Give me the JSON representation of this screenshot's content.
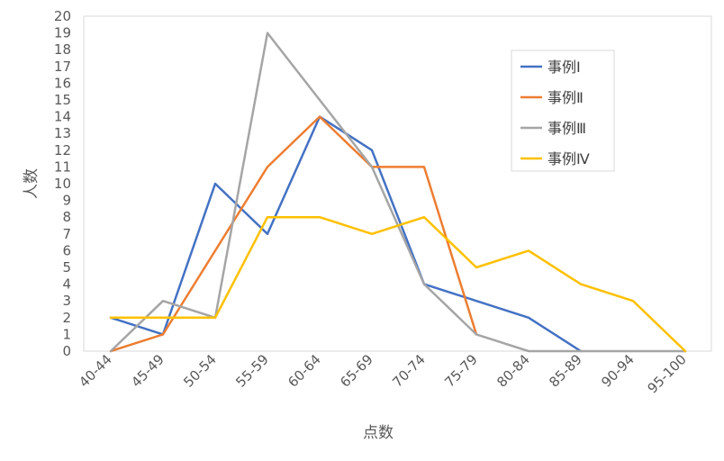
{
  "chart_data": {
    "type": "line",
    "title": "",
    "xlabel": "点数",
    "ylabel": "人数",
    "ylim": [
      0,
      20
    ],
    "yticks": [
      0,
      1,
      2,
      3,
      4,
      5,
      6,
      7,
      8,
      9,
      10,
      11,
      12,
      13,
      14,
      15,
      16,
      17,
      18,
      19,
      20
    ],
    "grid": false,
    "legend_position": "top-right",
    "categories": [
      "40-44",
      "45-49",
      "50-54",
      "55-59",
      "60-64",
      "65-69",
      "70-74",
      "75-79",
      "80-84",
      "85-89",
      "90-94",
      "95-100"
    ],
    "series": [
      {
        "name": "事例Ⅰ",
        "color": "#4472C4",
        "values": [
          2,
          1,
          10,
          7,
          14,
          12,
          4,
          3,
          2,
          0,
          null,
          null
        ]
      },
      {
        "name": "事例Ⅱ",
        "color": "#ED7D31",
        "values": [
          0,
          1,
          6,
          11,
          14,
          11,
          11,
          1,
          null,
          null,
          null,
          null
        ]
      },
      {
        "name": "事例Ⅲ",
        "color": "#A5A5A5",
        "values": [
          0,
          3,
          2,
          19,
          15,
          11,
          4,
          1,
          0,
          0,
          0,
          0
        ]
      },
      {
        "name": "事例Ⅳ",
        "color": "#FFC000",
        "values": [
          2,
          2,
          2,
          8,
          8,
          7,
          8,
          5,
          6,
          4,
          3,
          0
        ]
      }
    ]
  }
}
